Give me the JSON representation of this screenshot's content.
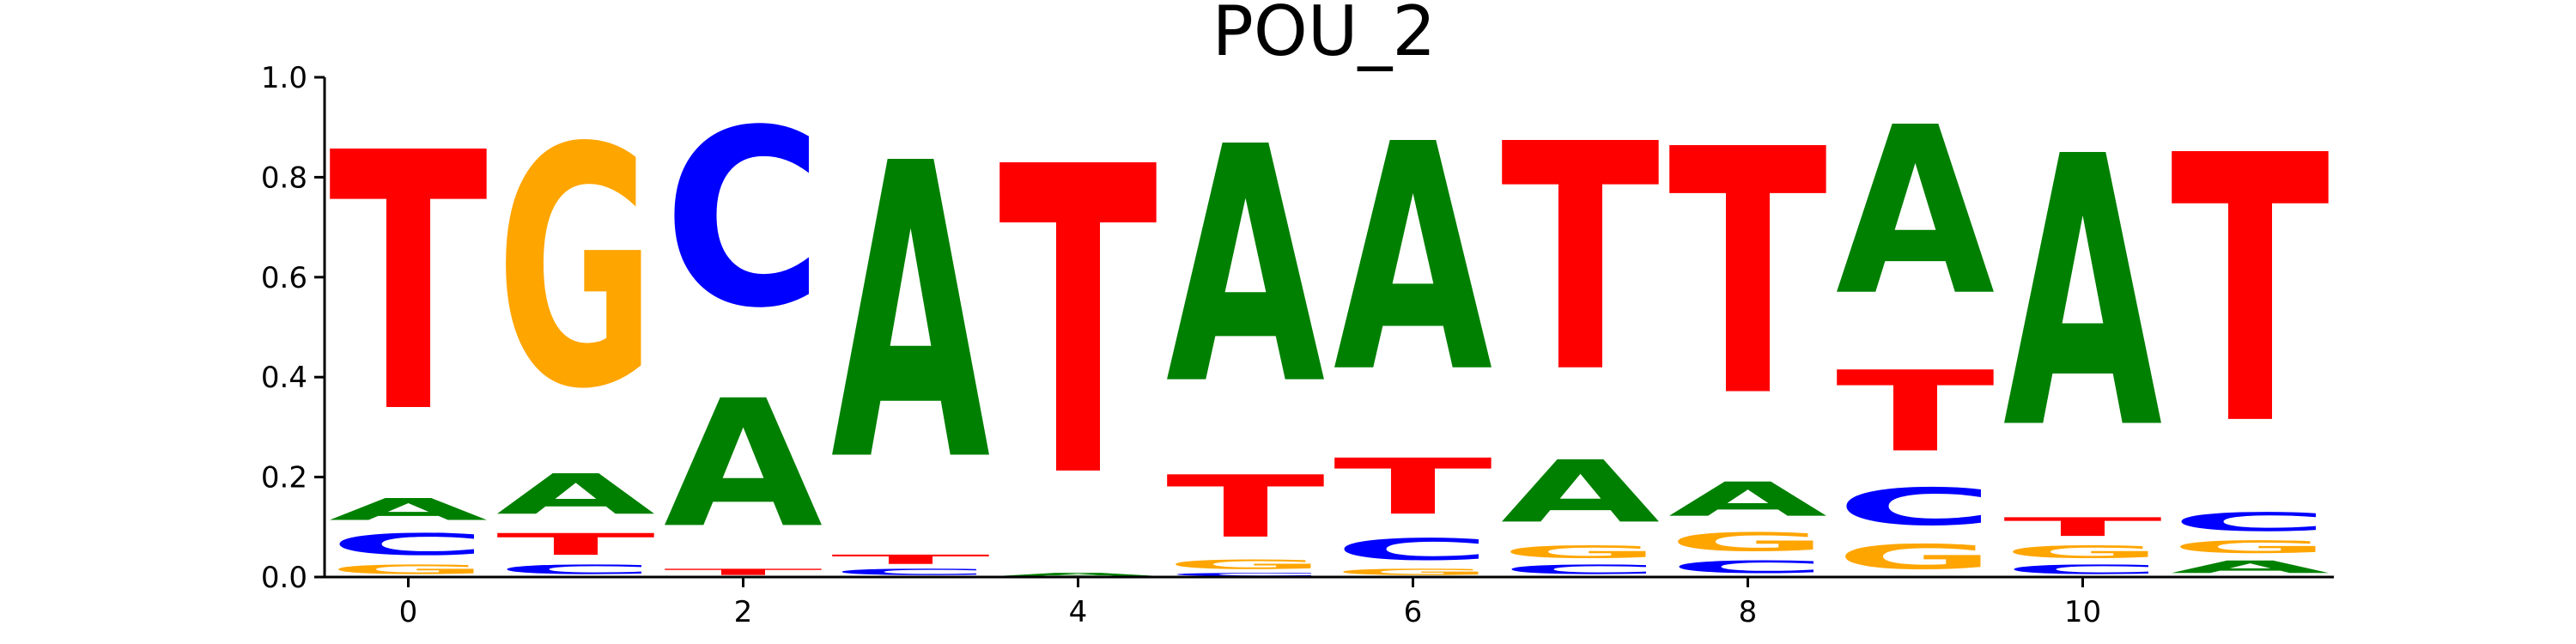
{
  "chart_data": {
    "type": "sequence-logo",
    "title": "POU_2",
    "xlabel": "",
    "ylabel": "",
    "ylim": [
      0.0,
      1.0
    ],
    "xlim": [
      -0.5,
      11.5
    ],
    "x_ticks": [
      0,
      2,
      4,
      6,
      8,
      10
    ],
    "x_tick_labels": [
      "0",
      "2",
      "4",
      "6",
      "8",
      "10"
    ],
    "y_ticks": [
      0.0,
      0.2,
      0.4,
      0.6,
      0.8,
      1.0
    ],
    "y_tick_labels": [
      "0.0",
      "0.2",
      "0.4",
      "0.6",
      "0.8",
      "1.0"
    ],
    "grid": false,
    "colors": {
      "A": "#008000",
      "C": "#0000ff",
      "G": "#ffa500",
      "T": "#ff0000"
    },
    "positions": [
      {
        "pos": 0,
        "letters": [
          {
            "base": "G",
            "value": 0.03
          },
          {
            "base": "C",
            "value": 0.07
          },
          {
            "base": "A",
            "value": 0.07
          },
          {
            "base": "T",
            "value": 0.83
          }
        ]
      },
      {
        "pos": 1,
        "letters": [
          {
            "base": "C",
            "value": 0.03
          },
          {
            "base": "T",
            "value": 0.07
          },
          {
            "base": "A",
            "value": 0.13
          },
          {
            "base": "G",
            "value": 0.77
          }
        ]
      },
      {
        "pos": 2,
        "letters": [
          {
            "base": "T",
            "value": 0.02
          },
          {
            "base": "A",
            "value": 0.41
          },
          {
            "base": "C",
            "value": 0.57
          }
        ]
      },
      {
        "pos": 3,
        "letters": [
          {
            "base": "C",
            "value": 0.02
          },
          {
            "base": "T",
            "value": 0.03
          },
          {
            "base": "A",
            "value": 0.95
          }
        ]
      },
      {
        "pos": 4,
        "letters": [
          {
            "base": "A",
            "value": 0.01
          },
          {
            "base": "T",
            "value": 0.99
          }
        ]
      },
      {
        "pos": 5,
        "letters": [
          {
            "base": "C",
            "value": 0.01
          },
          {
            "base": "G",
            "value": 0.03
          },
          {
            "base": "T",
            "value": 0.2
          },
          {
            "base": "A",
            "value": 0.76
          }
        ]
      },
      {
        "pos": 6,
        "letters": [
          {
            "base": "G",
            "value": 0.02
          },
          {
            "base": "C",
            "value": 0.07
          },
          {
            "base": "T",
            "value": 0.18
          },
          {
            "base": "A",
            "value": 0.73
          }
        ]
      },
      {
        "pos": 7,
        "letters": [
          {
            "base": "C",
            "value": 0.03
          },
          {
            "base": "G",
            "value": 0.04
          },
          {
            "base": "A",
            "value": 0.2
          },
          {
            "base": "T",
            "value": 0.73
          }
        ]
      },
      {
        "pos": 8,
        "letters": [
          {
            "base": "C",
            "value": 0.04
          },
          {
            "base": "G",
            "value": 0.06
          },
          {
            "base": "A",
            "value": 0.11
          },
          {
            "base": "T",
            "value": 0.79
          }
        ]
      },
      {
        "pos": 9,
        "letters": [
          {
            "base": "G",
            "value": 0.08
          },
          {
            "base": "C",
            "value": 0.12
          },
          {
            "base": "T",
            "value": 0.26
          },
          {
            "base": "A",
            "value": 0.54
          }
        ]
      },
      {
        "pos": 10,
        "letters": [
          {
            "base": "C",
            "value": 0.03
          },
          {
            "base": "G",
            "value": 0.04
          },
          {
            "base": "T",
            "value": 0.06
          },
          {
            "base": "A",
            "value": 0.87
          }
        ]
      },
      {
        "pos": 11,
        "letters": [
          {
            "base": "A",
            "value": 0.04
          },
          {
            "base": "G",
            "value": 0.04
          },
          {
            "base": "C",
            "value": 0.06
          },
          {
            "base": "T",
            "value": 0.86
          }
        ]
      }
    ]
  }
}
